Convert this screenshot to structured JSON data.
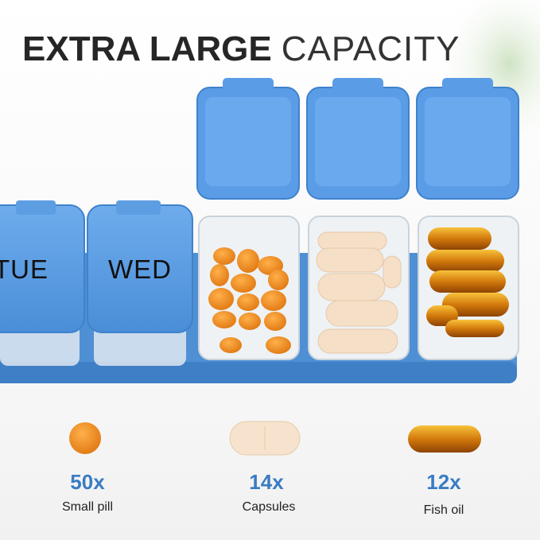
{
  "header": {
    "title_bold": "EXTRA LARGE",
    "title_light": "CAPACITY"
  },
  "compartments": [
    "TUE",
    "WED"
  ],
  "items": [
    {
      "count": "50x",
      "label": "Small pill"
    },
    {
      "count": "14x",
      "label": "Capsules"
    },
    {
      "count": "12x",
      "label": "Fish oil"
    }
  ]
}
